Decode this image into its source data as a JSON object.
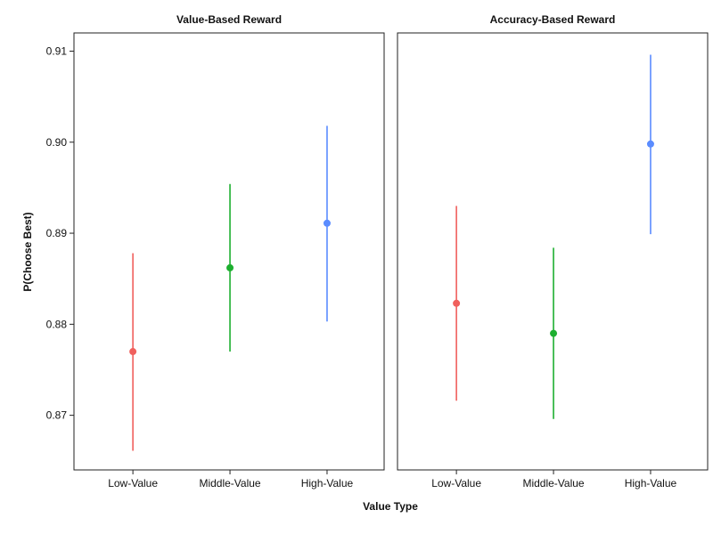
{
  "chart_data": {
    "type": "scatter",
    "subtype": "point-errorbar",
    "xlabel": "Value Type",
    "ylabel": "P(Choose Best)",
    "categories": [
      "Low-Value",
      "Middle-Value",
      "High-Value"
    ],
    "colors": [
      "#F0605D",
      "#1DAF2F",
      "#5A8CFF"
    ],
    "ylim": [
      0.864,
      0.912
    ],
    "yticks": [
      0.87,
      0.88,
      0.89,
      0.9,
      0.91
    ],
    "ytick_labels": [
      "0.87",
      "0.88",
      "0.89",
      "0.90",
      "0.91"
    ],
    "grid": false,
    "legend": "none",
    "panels": [
      {
        "title": "Value-Based Reward",
        "points": [
          {
            "category": "Low-Value",
            "y": 0.877,
            "lower": 0.8661,
            "upper": 0.8878
          },
          {
            "category": "Middle-Value",
            "y": 0.8862,
            "lower": 0.877,
            "upper": 0.8954
          },
          {
            "category": "High-Value",
            "y": 0.8911,
            "lower": 0.8803,
            "upper": 0.9018
          }
        ]
      },
      {
        "title": "Accuracy-Based Reward",
        "points": [
          {
            "category": "Low-Value",
            "y": 0.8823,
            "lower": 0.8716,
            "upper": 0.893
          },
          {
            "category": "Middle-Value",
            "y": 0.879,
            "lower": 0.8696,
            "upper": 0.8884
          },
          {
            "category": "High-Value",
            "y": 0.8998,
            "lower": 0.8899,
            "upper": 0.9096
          }
        ]
      }
    ]
  }
}
